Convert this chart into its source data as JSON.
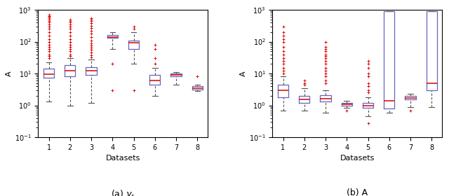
{
  "left_boxes": [
    {
      "med": 9.5,
      "q1": 7.5,
      "q3": 14,
      "whislo": 1.3,
      "whishi": 23,
      "fliers_above": [
        30,
        35,
        40,
        50,
        60,
        70,
        80,
        100,
        120,
        150,
        200,
        250,
        300,
        350,
        400,
        450,
        500,
        550,
        600,
        650,
        700
      ],
      "fliers_below": []
    },
    {
      "med": 12,
      "q1": 8,
      "q3": 18,
      "whislo": 1.0,
      "whishi": 30,
      "fliers_above": [
        35,
        40,
        50,
        60,
        70,
        80,
        100,
        120,
        150,
        200,
        250,
        300,
        350,
        400,
        450,
        500
      ],
      "fliers_below": []
    },
    {
      "med": 12,
      "q1": 9,
      "q3": 16,
      "whislo": 1.2,
      "whishi": 28,
      "fliers_above": [
        32,
        38,
        45,
        55,
        65,
        75,
        90,
        110,
        140,
        180,
        220,
        270,
        320,
        380,
        440,
        500,
        550
      ],
      "fliers_below": []
    },
    {
      "med": 140,
      "q1": 130,
      "q3": 160,
      "whislo": 60,
      "whishi": 200,
      "fliers_above": [],
      "fliers_below": [
        3.0,
        20
      ]
    },
    {
      "med": 95,
      "q1": 60,
      "q3": 110,
      "whislo": 20,
      "whishi": 200,
      "fliers_above": [
        250,
        300
      ],
      "fliers_below": [
        3.0
      ]
    },
    {
      "med": 6,
      "q1": 4.5,
      "q3": 9,
      "whislo": 2.0,
      "whishi": 15,
      "fliers_above": [
        20,
        30,
        60,
        80
      ],
      "fliers_below": []
    },
    {
      "med": 9,
      "q1": 8,
      "q3": 10,
      "whislo": 4.5,
      "whishi": 11,
      "fliers_above": [],
      "fliers_below": []
    },
    {
      "med": 3.5,
      "q1": 3.2,
      "q3": 4.0,
      "whislo": 2.8,
      "whishi": 4.5,
      "fliers_above": [
        8.0
      ],
      "fliers_below": []
    }
  ],
  "right_boxes": [
    {
      "med": 3.0,
      "q1": 1.8,
      "q3": 4.5,
      "whislo": 0.7,
      "whishi": 8.0,
      "fliers_above": [
        10,
        12,
        15,
        20,
        25,
        30,
        40,
        50,
        70,
        100,
        120,
        150,
        200,
        300
      ],
      "fliers_below": []
    },
    {
      "med": 1.5,
      "q1": 1.2,
      "q3": 2.0,
      "whislo": 0.7,
      "whishi": 3.5,
      "fliers_above": [
        4.5,
        5,
        6
      ],
      "fliers_below": []
    },
    {
      "med": 1.6,
      "q1": 1.3,
      "q3": 2.1,
      "whislo": 0.6,
      "whishi": 3.0,
      "fliers_above": [
        5,
        6,
        8,
        10,
        12,
        15,
        20,
        25,
        30,
        35,
        40,
        50,
        60,
        70,
        100
      ],
      "fliers_below": []
    },
    {
      "med": 1.1,
      "q1": 1.0,
      "q3": 1.2,
      "whislo": 0.85,
      "whishi": 1.4,
      "fliers_above": [],
      "fliers_below": [
        0.7
      ]
    },
    {
      "med": 1.0,
      "q1": 0.85,
      "q3": 1.2,
      "whislo": 0.45,
      "whishi": 1.8,
      "fliers_above": [
        2.5,
        3,
        4,
        5,
        8,
        10,
        15,
        20,
        25
      ],
      "fliers_below": [
        0.28
      ]
    },
    {
      "med": 1.4,
      "q1": 0.8,
      "q3": 900,
      "whislo": 0.6,
      "whishi": 900,
      "fliers_above": [],
      "fliers_below": []
    },
    {
      "med": 1.7,
      "q1": 1.5,
      "q3": 2.0,
      "whislo": 0.9,
      "whishi": 2.3,
      "fliers_above": [],
      "fliers_below": [
        0.7
      ]
    },
    {
      "med": 5.0,
      "q1": 3.0,
      "q3": 900,
      "whislo": 0.9,
      "whishi": 900,
      "fliers_above": [],
      "fliers_below": []
    }
  ],
  "ylim": [
    0.1,
    1000
  ],
  "xlabel": "Datasets",
  "ylabel": "A",
  "label_left": "(a) $\\gamma_r$",
  "label_right": "(b) A",
  "box_color": "#6666bb",
  "median_color": "#dd0000",
  "flier_color": "#dd0000",
  "whisker_color": "#555555"
}
